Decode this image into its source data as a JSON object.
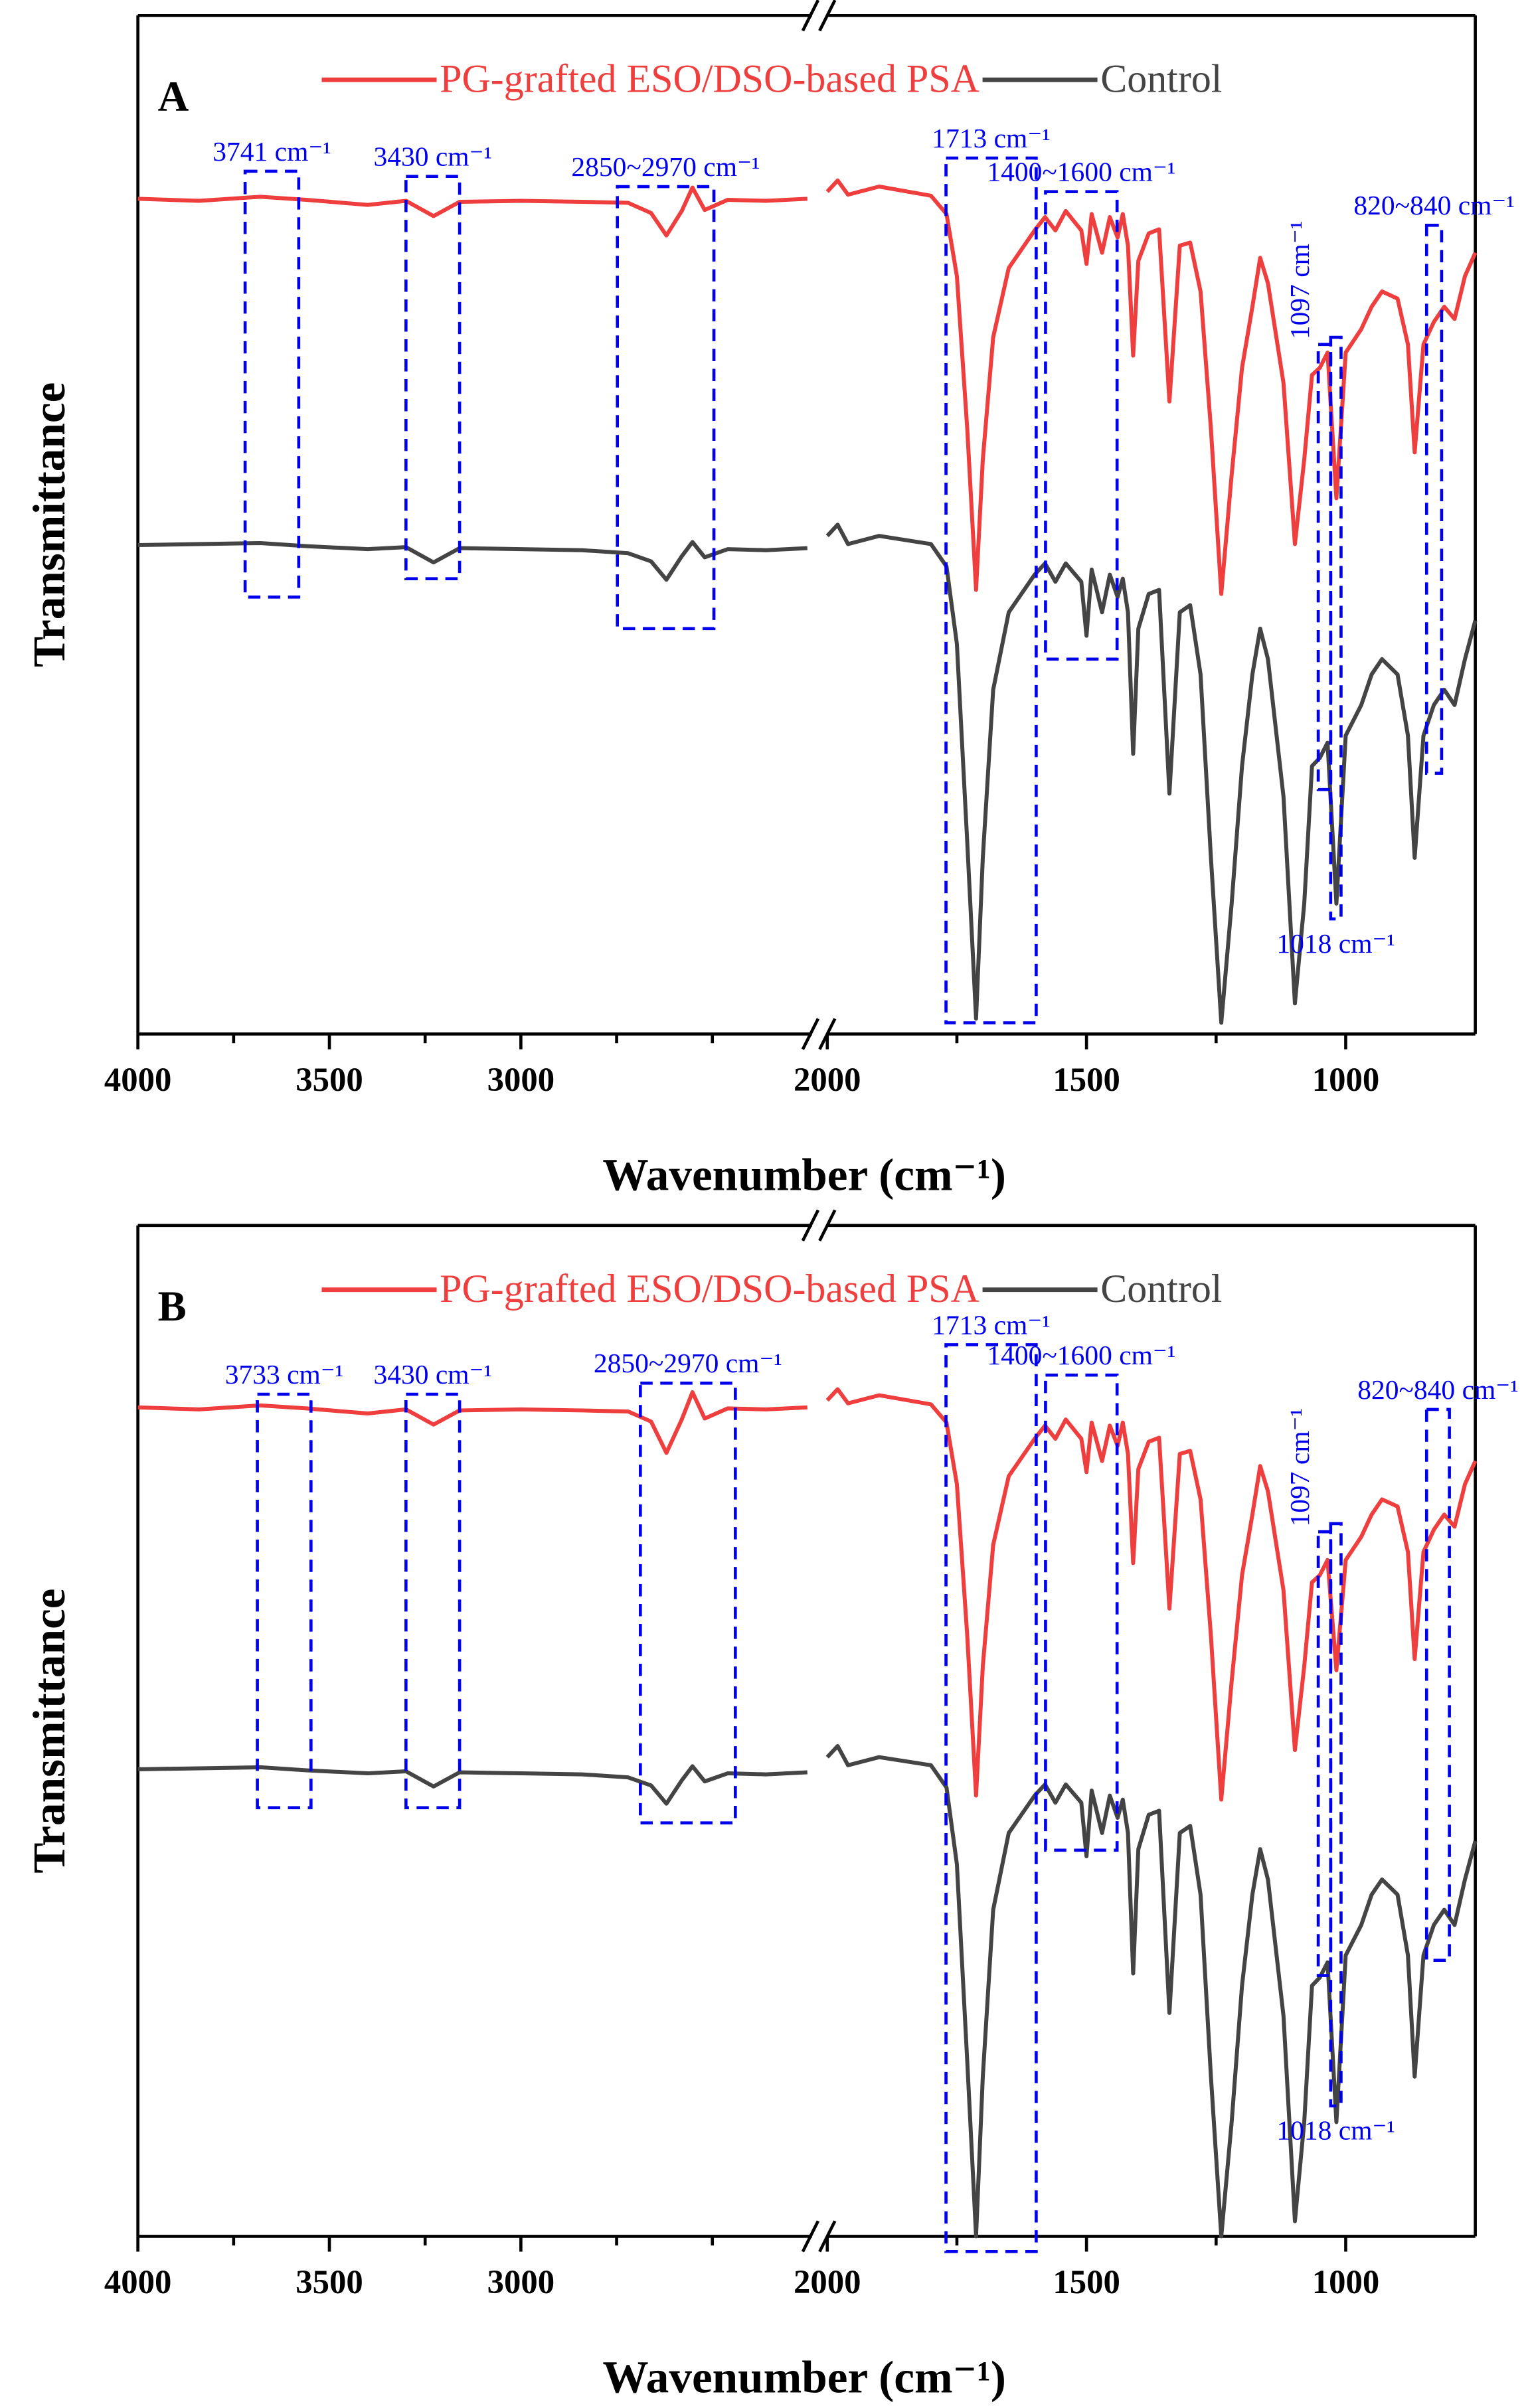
{
  "chart_data": [
    {
      "type": "line",
      "panel": "A",
      "xlabel": "Wavenumber (cm⁻¹)",
      "ylabel": "Transmittance",
      "legend": "top",
      "x": [
        4000,
        3840,
        3680,
        3560,
        3400,
        3300,
        3228,
        3160,
        3000,
        2840,
        2720,
        2660,
        2620,
        2580,
        2552,
        2520,
        2460,
        2360,
        2252,
        2000,
        1980,
        1960,
        1900,
        1800,
        1770,
        1750,
        1730,
        1713,
        1700,
        1680,
        1650,
        1600,
        1580,
        1560,
        1540,
        1510,
        1500,
        1490,
        1470,
        1455,
        1440,
        1430,
        1420,
        1410,
        1400,
        1380,
        1360,
        1340,
        1320,
        1300,
        1280,
        1260,
        1240,
        1220,
        1200,
        1180,
        1165,
        1150,
        1120,
        1098,
        1080,
        1065,
        1050,
        1035,
        1018,
        1000,
        970,
        950,
        930,
        900,
        880,
        867,
        850,
        830,
        810,
        790,
        770,
        750
      ],
      "series": [
        {
          "name": "PG-grafted ESO/DSO-based PSA",
          "color": "#ee3e3e",
          "values": [
            82,
            81.8,
            82.2,
            81.9,
            81.4,
            81.8,
            80.3,
            81.7,
            81.8,
            81.7,
            81.6,
            80.6,
            78.4,
            80.8,
            83.1,
            80.9,
            81.9,
            81.8,
            82,
            82.7,
            83.8,
            82.4,
            83.2,
            82.3,
            80.5,
            74.4,
            59.4,
            43.6,
            56.4,
            68.4,
            75.2,
            78.9,
            80.2,
            78.9,
            80.8,
            78.9,
            75.6,
            80.5,
            76.7,
            80.2,
            78.2,
            80.5,
            77.4,
            66.6,
            75.9,
            78.6,
            79,
            62.1,
            77.4,
            77.7,
            72.9,
            59.4,
            43.2,
            54.9,
            65.4,
            71.4,
            76.2,
            73.7,
            63.9,
            48.1,
            56.4,
            64.7,
            65.4,
            66.9,
            52.6,
            66.9,
            69.2,
            71.4,
            72.9,
            72.2,
            67.7,
            57.1,
            67.7,
            69.9,
            71.4,
            70.2,
            74.4,
            76.7
          ]
        },
        {
          "name": "Control",
          "color": "#444444",
          "values": [
            48,
            48.1,
            48.2,
            47.9,
            47.6,
            47.8,
            46.3,
            47.7,
            47.6,
            47.5,
            47.2,
            46.4,
            44.6,
            46.9,
            48.3,
            46.8,
            47.6,
            47.5,
            47.7,
            48.9,
            50,
            48.1,
            48.9,
            48.1,
            45.9,
            38.3,
            18.8,
            1.5,
            17.3,
            33.8,
            41.4,
            45.1,
            46.2,
            44.4,
            46.2,
            44.4,
            39.1,
            45.6,
            41.4,
            45.1,
            42.9,
            44.7,
            41.4,
            27.5,
            39.8,
            43.2,
            43.6,
            23.6,
            41.4,
            42.1,
            35.3,
            17.3,
            1.1,
            12.8,
            26.3,
            35.3,
            39.8,
            36.8,
            23.3,
            3,
            12.8,
            26.3,
            27.1,
            28.6,
            12.8,
            29.3,
            32.3,
            35.3,
            36.8,
            35.3,
            29.3,
            17.3,
            29.3,
            32.3,
            33.8,
            32.3,
            36.8,
            40.6
          ]
        }
      ],
      "xsegments": [
        {
          "xlim": [
            4000,
            2240
          ],
          "xticks": [
            4000,
            3500,
            3000
          ],
          "xminor": [
            3750,
            3250,
            2750,
            2500
          ]
        },
        {
          "xlim": [
            2000,
            750
          ],
          "xticks": [
            2000,
            1500,
            1000
          ],
          "xminor": [
            1750,
            1250
          ]
        }
      ],
      "ylim": [
        0,
        100
      ],
      "annotations": [
        {
          "label": "3741 cm⁻¹",
          "x": [
            3720,
            3580
          ],
          "y": [
            42.9,
            84.7
          ],
          "side": "top"
        },
        {
          "label": "3430 cm⁻¹",
          "x": [
            3300,
            3160
          ],
          "y": [
            44.7,
            84.2
          ],
          "side": "top"
        },
        {
          "label": "2850~2970 cm⁻¹",
          "x": [
            2748,
            2496
          ],
          "y": [
            39.8,
            83.2
          ],
          "side": "top"
        },
        {
          "label": "1713 cm⁻¹",
          "x": [
            1771,
            1597
          ],
          "y": [
            1.1,
            86
          ],
          "side": "top"
        },
        {
          "label": "1400~1600 cm⁻¹",
          "x": [
            1579,
            1441
          ],
          "y": [
            36.8,
            82.7
          ],
          "side": "top"
        },
        {
          "label": "1097 cm⁻¹",
          "x": [
            1053,
            1029
          ],
          "y": [
            24,
            67.7
          ],
          "side": "vertical"
        },
        {
          "label": "1018 cm⁻¹",
          "x": [
            1029,
            1009
          ],
          "y": [
            11.3,
            68.4
          ],
          "side": "bottom"
        },
        {
          "label": "820~840 cm⁻¹",
          "x": [
            844,
            815
          ],
          "y": [
            25.6,
            79.4
          ],
          "side": "top"
        }
      ]
    },
    {
      "type": "line",
      "panel": "B",
      "xlabel": "Wavenumber (cm⁻¹)",
      "ylabel": "Transmittance",
      "legend": "top",
      "x": [
        4000,
        3840,
        3680,
        3560,
        3400,
        3300,
        3228,
        3160,
        3000,
        2840,
        2720,
        2660,
        2620,
        2580,
        2552,
        2520,
        2460,
        2360,
        2252,
        2000,
        1980,
        1960,
        1900,
        1800,
        1770,
        1750,
        1730,
        1713,
        1700,
        1680,
        1650,
        1600,
        1580,
        1560,
        1540,
        1510,
        1500,
        1490,
        1470,
        1455,
        1440,
        1430,
        1420,
        1410,
        1400,
        1380,
        1360,
        1340,
        1320,
        1300,
        1280,
        1260,
        1240,
        1220,
        1200,
        1180,
        1165,
        1150,
        1120,
        1098,
        1080,
        1065,
        1050,
        1035,
        1018,
        1000,
        970,
        950,
        930,
        900,
        880,
        867,
        850,
        830,
        810,
        790,
        770,
        750
      ],
      "series": [
        {
          "name": "PG-grafted ESO/DSO-based PSA",
          "color": "#ee3e3e",
          "values": [
            82,
            81.8,
            82.2,
            81.9,
            81.4,
            81.8,
            80.3,
            81.7,
            81.8,
            81.7,
            81.6,
            80.6,
            77.5,
            80.8,
            83.5,
            80.9,
            81.9,
            81.8,
            82,
            82.7,
            83.8,
            82.4,
            83.2,
            82.3,
            80.5,
            74.4,
            59.4,
            43.6,
            56.4,
            68.4,
            75.2,
            78.9,
            80.2,
            78.9,
            80.8,
            78.9,
            75.6,
            80.5,
            76.7,
            80.2,
            78.2,
            80.5,
            77.4,
            66.6,
            75.9,
            78.6,
            79,
            62.1,
            77.4,
            77.7,
            72.9,
            59.4,
            43.2,
            54.9,
            65.4,
            71.4,
            76.2,
            73.7,
            63.9,
            48.1,
            56.4,
            64.7,
            65.4,
            66.9,
            56,
            66.9,
            69.2,
            71.4,
            72.9,
            72.2,
            67.7,
            57.1,
            67.7,
            69.9,
            71.4,
            70.2,
            74.4,
            76.7
          ]
        },
        {
          "name": "Control",
          "color": "#444444",
          "values": [
            46.2,
            46.3,
            46.4,
            46.1,
            45.8,
            46,
            44.5,
            45.9,
            45.8,
            45.7,
            45.4,
            44.6,
            42.8,
            45.1,
            46.5,
            45,
            45.8,
            45.7,
            45.9,
            47.4,
            48.5,
            46.6,
            47.4,
            46.6,
            44.4,
            36.8,
            17.3,
            0,
            15.8,
            32.3,
            39.9,
            43.6,
            44.7,
            42.9,
            44.7,
            42.9,
            37.6,
            44.1,
            39.9,
            43.6,
            41.4,
            43.2,
            39.9,
            26,
            38.3,
            41.7,
            42.1,
            22.1,
            39.9,
            40.6,
            33.8,
            15.8,
            0,
            11.3,
            24.8,
            33.8,
            38.3,
            35.3,
            21.8,
            1.5,
            11.3,
            24.8,
            25.6,
            27.1,
            11.3,
            27.8,
            30.8,
            33.8,
            35.3,
            33.8,
            27.8,
            15.8,
            27.8,
            30.8,
            32.3,
            30.8,
            35.3,
            39.1
          ]
        }
      ],
      "xsegments": [
        {
          "xlim": [
            4000,
            2240
          ],
          "xticks": [
            4000,
            3500,
            3000
          ],
          "xminor": [
            3750,
            3250,
            2750,
            2500
          ]
        },
        {
          "xlim": [
            2000,
            750
          ],
          "xticks": [
            2000,
            1500,
            1000
          ],
          "xminor": [
            1750,
            1250
          ]
        }
      ],
      "ylim": [
        0,
        100
      ],
      "annotations": [
        {
          "label": "3733 cm⁻¹",
          "x": [
            3688,
            3548
          ],
          "y": [
            42.4,
            83.3
          ],
          "side": "top"
        },
        {
          "label": "3430 cm⁻¹",
          "x": [
            3300,
            3160
          ],
          "y": [
            42.4,
            83.3
          ],
          "side": "top"
        },
        {
          "label": "2850~2970 cm⁻¹",
          "x": [
            2688,
            2440
          ],
          "y": [
            40.9,
            84.4
          ],
          "side": "top"
        },
        {
          "label": "1713 cm⁻¹",
          "x": [
            1771,
            1597
          ],
          "y": [
            -1.5,
            88.2
          ],
          "side": "top"
        },
        {
          "label": "1400~1600 cm⁻¹",
          "x": [
            1579,
            1441
          ],
          "y": [
            38.2,
            85.2
          ],
          "side": "top"
        },
        {
          "label": "1097 cm⁻¹",
          "x": [
            1053,
            1029
          ],
          "y": [
            25.8,
            69.7
          ],
          "side": "vertical"
        },
        {
          "label": "1018 cm⁻¹",
          "x": [
            1029,
            1009
          ],
          "y": [
            12.9,
            70.5
          ],
          "side": "bottom"
        },
        {
          "label": "820~840 cm⁻¹",
          "x": [
            844,
            800
          ],
          "y": [
            27.3,
            81.8
          ],
          "side": "top"
        }
      ]
    }
  ]
}
